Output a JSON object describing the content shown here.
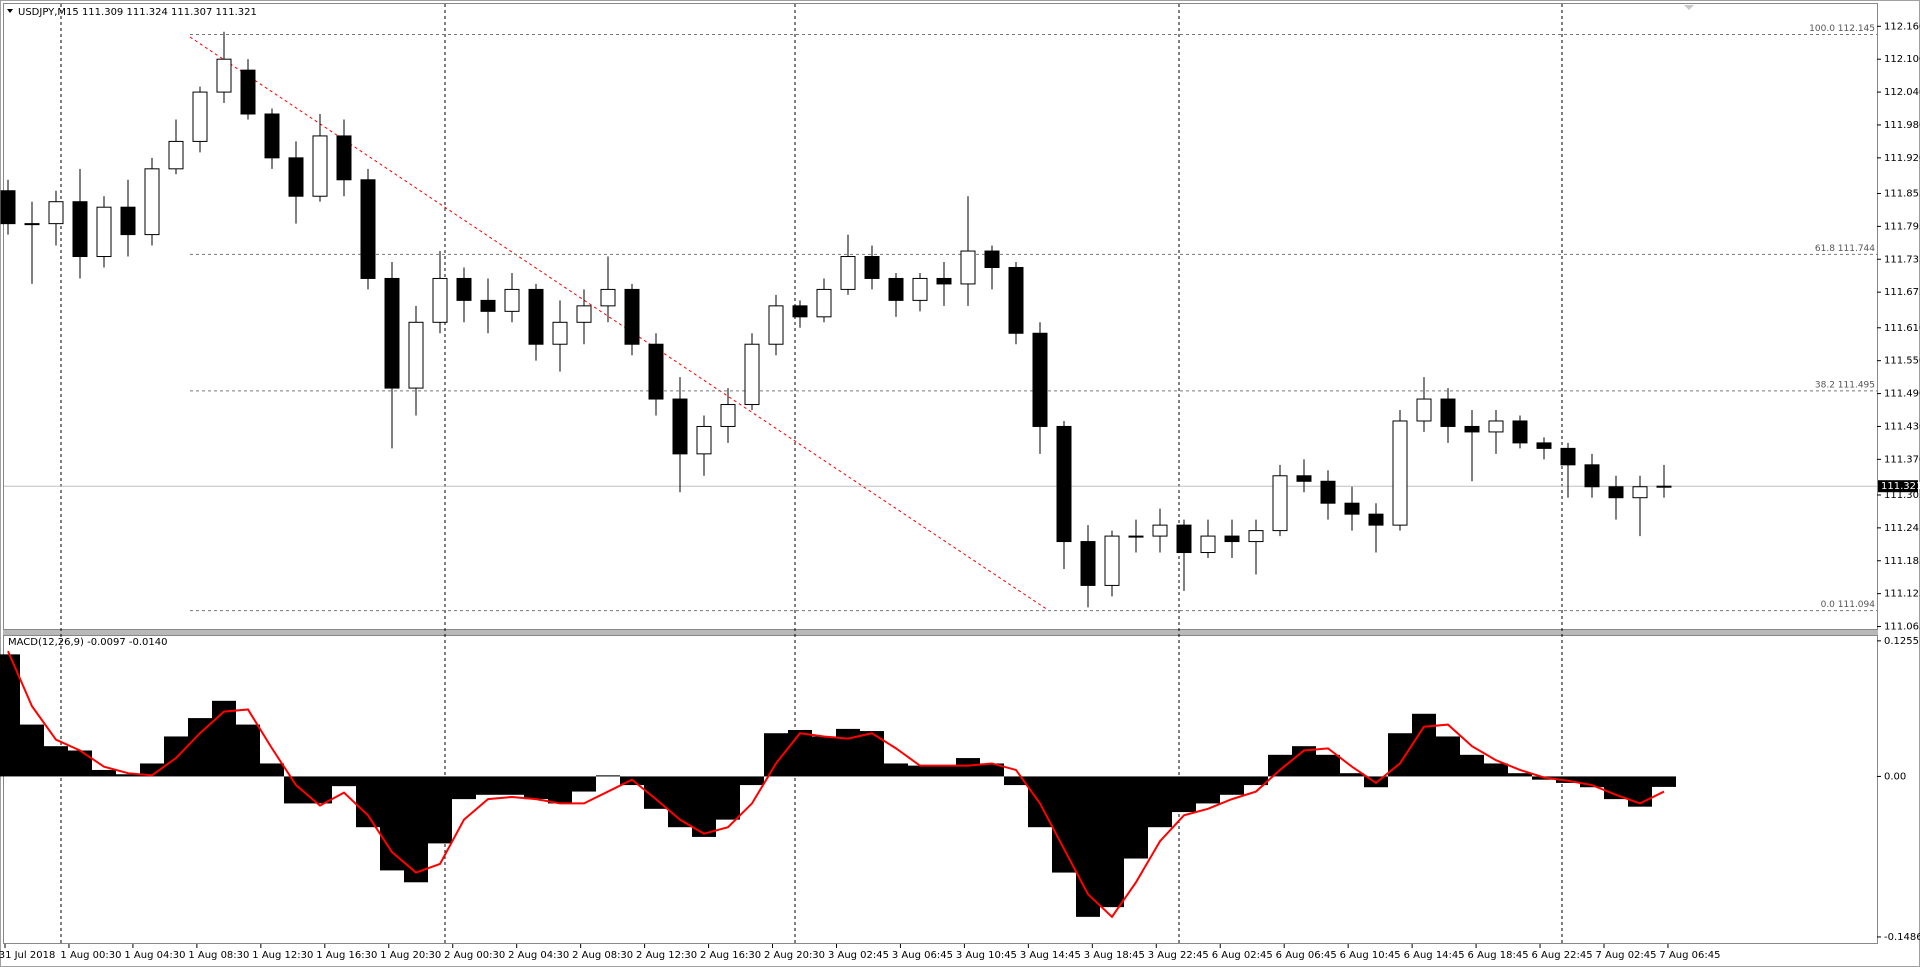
{
  "chart_data": [
    {
      "type": "candlestick",
      "title": "USDJPY,M15  111.309 111.324 111.307 111.321",
      "open": [
        111.86,
        111.8,
        111.8,
        111.84,
        111.74,
        111.83,
        111.78,
        111.9,
        111.95,
        112.04,
        112.08,
        112.0,
        111.92,
        111.85,
        111.96,
        111.88,
        111.7,
        111.5,
        111.62,
        111.7,
        111.66,
        111.64,
        111.68,
        111.58,
        111.62,
        111.65,
        111.68,
        111.58,
        111.48,
        111.38,
        111.43,
        111.47,
        111.58,
        111.65,
        111.63,
        111.68,
        111.74,
        111.7,
        111.66,
        111.7,
        111.69,
        111.75,
        111.72,
        111.6,
        111.43,
        111.22,
        111.14,
        111.23,
        111.23,
        111.25,
        111.2,
        111.23,
        111.22,
        111.24,
        111.34,
        111.33,
        111.29,
        111.27,
        111.25,
        111.44,
        111.48,
        111.43,
        111.42,
        111.44,
        111.4,
        111.39,
        111.36,
        111.32,
        111.3,
        111.32
      ],
      "high": [
        111.88,
        111.84,
        111.86,
        111.9,
        111.85,
        111.88,
        111.92,
        111.99,
        112.05,
        112.15,
        112.1,
        112.01,
        111.95,
        112.0,
        111.99,
        111.9,
        111.73,
        111.65,
        111.75,
        111.72,
        111.7,
        111.71,
        111.69,
        111.66,
        111.68,
        111.74,
        111.69,
        111.6,
        111.52,
        111.45,
        111.5,
        111.6,
        111.67,
        111.66,
        111.7,
        111.78,
        111.76,
        111.71,
        111.71,
        111.73,
        111.85,
        111.76,
        111.73,
        111.62,
        111.44,
        111.25,
        111.24,
        111.26,
        111.28,
        111.26,
        111.26,
        111.26,
        111.26,
        111.36,
        111.37,
        111.35,
        111.32,
        111.29,
        111.46,
        111.52,
        111.5,
        111.46,
        111.46,
        111.45,
        111.41,
        111.4,
        111.38,
        111.34,
        111.34,
        111.36
      ],
      "low": [
        111.78,
        111.69,
        111.76,
        111.7,
        111.72,
        111.74,
        111.76,
        111.89,
        111.93,
        112.02,
        111.99,
        111.9,
        111.8,
        111.84,
        111.85,
        111.68,
        111.39,
        111.45,
        111.6,
        111.62,
        111.6,
        111.62,
        111.55,
        111.53,
        111.58,
        111.62,
        111.56,
        111.45,
        111.31,
        111.34,
        111.4,
        111.46,
        111.56,
        111.61,
        111.62,
        111.67,
        111.68,
        111.63,
        111.64,
        111.65,
        111.65,
        111.68,
        111.58,
        111.38,
        111.17,
        111.1,
        111.12,
        111.2,
        111.2,
        111.13,
        111.19,
        111.19,
        111.16,
        111.23,
        111.31,
        111.26,
        111.24,
        111.2,
        111.24,
        111.42,
        111.4,
        111.33,
        111.38,
        111.39,
        111.37,
        111.3,
        111.3,
        111.26,
        111.23,
        111.3
      ],
      "close": [
        111.8,
        111.8,
        111.84,
        111.74,
        111.83,
        111.78,
        111.9,
        111.95,
        112.04,
        112.1,
        112.0,
        111.92,
        111.85,
        111.96,
        111.88,
        111.7,
        111.5,
        111.62,
        111.7,
        111.66,
        111.64,
        111.68,
        111.58,
        111.62,
        111.65,
        111.68,
        111.58,
        111.48,
        111.38,
        111.43,
        111.47,
        111.58,
        111.65,
        111.63,
        111.68,
        111.74,
        111.7,
        111.66,
        111.7,
        111.69,
        111.75,
        111.72,
        111.6,
        111.43,
        111.22,
        111.14,
        111.23,
        111.23,
        111.25,
        111.2,
        111.23,
        111.22,
        111.24,
        111.34,
        111.33,
        111.29,
        111.27,
        111.25,
        111.44,
        111.48,
        111.43,
        111.42,
        111.44,
        111.4,
        111.39,
        111.36,
        111.32,
        111.3,
        111.32,
        111.321
      ],
      "up_color": "#ffffff",
      "down_color": "#000000",
      "ylim": [
        111.0605,
        112.2025
      ],
      "yticks": [
        {
          "value": 112.16,
          "label": "112.160"
        },
        {
          "value": 112.1,
          "label": "112.100"
        },
        {
          "value": 112.04,
          "label": "112.040"
        },
        {
          "value": 111.98,
          "label": "111.980"
        },
        {
          "value": 111.92,
          "label": "111.920"
        },
        {
          "value": 111.855,
          "label": "111.855"
        },
        {
          "value": 111.795,
          "label": "111.795"
        },
        {
          "value": 111.735,
          "label": "111.735"
        },
        {
          "value": 111.675,
          "label": "111.675"
        },
        {
          "value": 111.61,
          "label": "111.610"
        },
        {
          "value": 111.55,
          "label": "111.550"
        },
        {
          "value": 111.49,
          "label": "111.490"
        },
        {
          "value": 111.43,
          "label": "111.430"
        },
        {
          "value": 111.37,
          "label": "111.370"
        },
        {
          "value": 111.305,
          "label": "111.305"
        },
        {
          "value": 111.245,
          "label": "111.245"
        },
        {
          "value": 111.185,
          "label": "111.185"
        },
        {
          "value": 111.125,
          "label": "111.125"
        },
        {
          "value": 111.065,
          "label": "111.065"
        }
      ],
      "fib_levels": [
        {
          "value": 112.145,
          "label": "100.0 112.145"
        },
        {
          "value": 111.744,
          "label": "61.8 111.744"
        },
        {
          "value": 111.495,
          "label": "38.2 111.495"
        },
        {
          "value": 111.094,
          "label": "0.0 111.094"
        }
      ],
      "current_price": {
        "value": 111.321,
        "label": "111.321"
      },
      "x_labels": [
        "31 Jul 2018",
        "1 Aug 00:30",
        "1 Aug 04:30",
        "1 Aug 08:30",
        "1 Aug 12:30",
        "1 Aug 16:30",
        "1 Aug 20:30",
        "2 Aug 00:30",
        "2 Aug 04:30",
        "2 Aug 08:30",
        "2 Aug 12:30",
        "2 Aug 16:30",
        "2 Aug 20:30",
        "3 Aug 02:45",
        "3 Aug 06:45",
        "3 Aug 10:45",
        "3 Aug 14:45",
        "3 Aug 18:45",
        "3 Aug 22:45",
        "6 Aug 02:45",
        "6 Aug 06:45",
        "6 Aug 10:45",
        "6 Aug 14:45",
        "6 Aug 18:45",
        "6 Aug 22:45",
        "7 Aug 02:45",
        "7 Aug 06:45"
      ]
    },
    {
      "type": "macd",
      "title": "MACD(12,26,9) -0.0097 -0.0140",
      "histogram": {
        "color": "#000000",
        "values": [
          0.113,
          0.048,
          0.028,
          0.024,
          0.006,
          0.002,
          0.012,
          0.037,
          0.054,
          0.07,
          0.048,
          0.012,
          -0.025,
          -0.025,
          -0.009,
          -0.047,
          -0.087,
          -0.098,
          -0.062,
          -0.021,
          -0.017,
          -0.017,
          -0.021,
          -0.025,
          -0.014,
          0.001,
          -0.008,
          -0.03,
          -0.047,
          -0.056,
          -0.04,
          -0.008,
          0.04,
          0.043,
          0.037,
          0.044,
          0.042,
          0.012,
          0.01,
          0.01,
          0.017,
          0.012,
          -0.008,
          -0.047,
          -0.089,
          -0.13,
          -0.121,
          -0.076,
          -0.047,
          -0.033,
          -0.025,
          -0.017,
          -0.008,
          0.02,
          0.028,
          0.02,
          0.003,
          -0.01,
          0.04,
          0.058,
          0.037,
          0.02,
          0.012,
          0.003,
          -0.003,
          -0.006,
          -0.01,
          -0.021,
          -0.028,
          -0.0097
        ]
      },
      "signal": {
        "color": "#ff0000",
        "values": [
          0.116,
          0.065,
          0.034,
          0.024,
          0.009,
          0.003,
          0.001,
          0.017,
          0.04,
          0.06,
          0.062,
          0.026,
          -0.008,
          -0.027,
          -0.015,
          -0.036,
          -0.07,
          -0.089,
          -0.081,
          -0.04,
          -0.021,
          -0.019,
          -0.021,
          -0.025,
          -0.025,
          -0.014,
          -0.003,
          -0.021,
          -0.04,
          -0.053,
          -0.047,
          -0.025,
          0.012,
          0.04,
          0.037,
          0.035,
          0.04,
          0.026,
          0.01,
          0.01,
          0.01,
          0.012,
          0.006,
          -0.025,
          -0.067,
          -0.109,
          -0.13,
          -0.098,
          -0.06,
          -0.036,
          -0.03,
          -0.021,
          -0.014,
          0.006,
          0.024,
          0.026,
          0.009,
          -0.006,
          0.012,
          0.046,
          0.048,
          0.028,
          0.015,
          0.006,
          -0.001,
          -0.004,
          -0.008,
          -0.017,
          -0.025,
          -0.014
        ]
      },
      "ylim": [
        -0.1542,
        0.13
      ],
      "yticks": [
        0.1255,
        {
          "value": 0,
          "label": "0.00"
        },
        -0.1486
      ]
    }
  ]
}
